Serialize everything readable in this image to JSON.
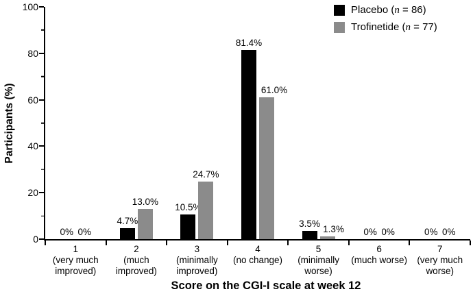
{
  "chart_data": {
    "type": "bar",
    "title": "",
    "xlabel": "Score on the CGI-I scale at week 12",
    "ylabel": "Participants (%)",
    "ylim": [
      0,
      100
    ],
    "yticks_major": [
      0,
      20,
      40,
      60,
      80,
      100
    ],
    "yticks_minor": [
      10,
      30,
      50,
      70,
      90
    ],
    "grid": false,
    "legend_position": "top-right",
    "categories": [
      {
        "score": "1",
        "desc": "(very much\nimproved)"
      },
      {
        "score": "2",
        "desc": "(much\nimproved)"
      },
      {
        "score": "3",
        "desc": "(minimally\nimproved)"
      },
      {
        "score": "4",
        "desc": "(no change)"
      },
      {
        "score": "5",
        "desc": "(minimally\nworse)"
      },
      {
        "score": "6",
        "desc": "(much worse)"
      },
      {
        "score": "7",
        "desc": "(very much\nworse)"
      }
    ],
    "series": [
      {
        "name": "Placebo (n = 86)",
        "color": "#000000",
        "values": [
          0,
          4.7,
          10.5,
          81.4,
          3.5,
          0,
          0
        ],
        "labels": [
          "0%",
          "4.7%",
          "10.5%",
          "81.4%",
          "3.5%",
          "0%",
          "0%"
        ],
        "label_dx": [
          0,
          0,
          0,
          0,
          0,
          0,
          0
        ]
      },
      {
        "name": "Trofinetide (n = 77)",
        "color": "#8b8b8b",
        "values": [
          0,
          13.0,
          24.7,
          61.0,
          1.3,
          0,
          0
        ],
        "labels": [
          "0%",
          "13.0%",
          "24.7%",
          "61.0%",
          "1.3%",
          "0%",
          "0%"
        ],
        "label_dx": [
          0,
          0,
          0,
          11,
          9,
          0,
          0
        ]
      }
    ]
  },
  "legend": {
    "items": [
      {
        "prefix": "Placebo (",
        "n": "n",
        "suffix": " = 86)",
        "color": "#000000"
      },
      {
        "prefix": "Trofinetide (",
        "n": "n",
        "suffix": " = 77)",
        "color": "#8b8b8b"
      }
    ]
  }
}
